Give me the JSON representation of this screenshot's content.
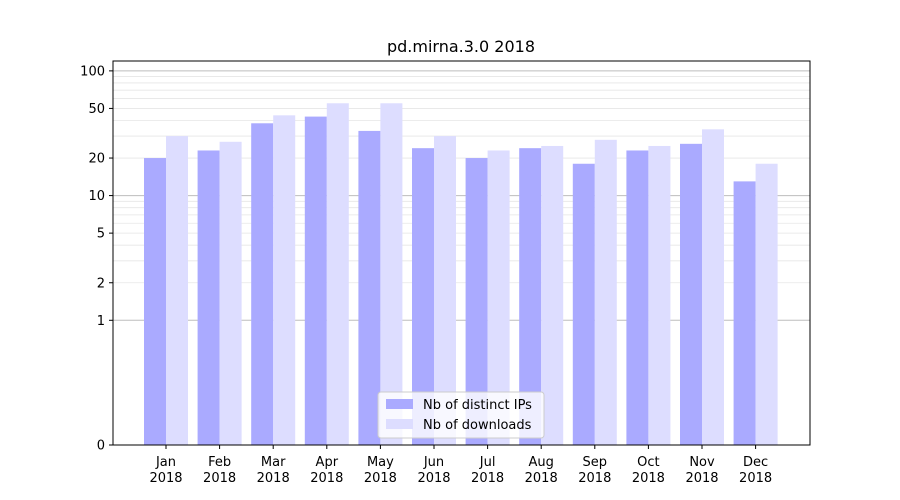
{
  "chart_data": {
    "type": "bar",
    "title": "pd.mirna.3.0 2018",
    "xlabel": "",
    "ylabel": "",
    "yscale": "symlog",
    "ylim": [
      0,
      120
    ],
    "yticks": [
      0,
      1,
      2,
      5,
      10,
      20,
      50,
      100
    ],
    "grid": "horizontal",
    "legend_position": "bottom-center",
    "categories": [
      "Jan\n2018",
      "Feb\n2018",
      "Mar\n2018",
      "Apr\n2018",
      "May\n2018",
      "Jun\n2018",
      "Jul\n2018",
      "Aug\n2018",
      "Sep\n2018",
      "Oct\n2018",
      "Nov\n2018",
      "Dec\n2018"
    ],
    "series": [
      {
        "name": "Nb of distinct IPs",
        "color": "#aaaaff",
        "values": [
          20,
          23,
          38,
          43,
          33,
          24,
          20,
          24,
          18,
          23,
          26,
          13
        ]
      },
      {
        "name": "Nb of downloads",
        "color": "#ddddff",
        "values": [
          30,
          27,
          44,
          55,
          55,
          30,
          23,
          25,
          28,
          25,
          34,
          18
        ]
      }
    ]
  }
}
